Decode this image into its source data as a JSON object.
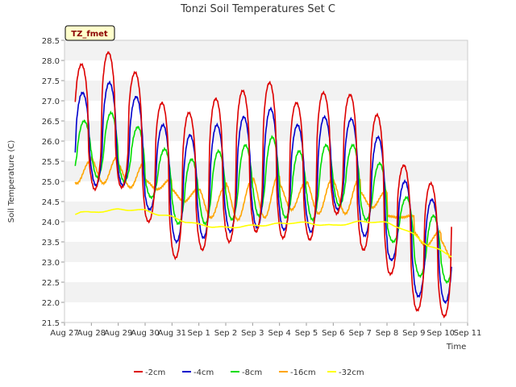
{
  "chart_data": {
    "type": "line",
    "title": "Tonzi Soil Temperatures Set C",
    "xlabel": "Time",
    "ylabel": "Soil Temperature (C)",
    "badge": "TZ_fmet",
    "ylim": [
      21.5,
      28.5
    ],
    "xlim": [
      0,
      15
    ],
    "x_tick_labels": [
      "Aug 27",
      "Aug 28",
      "Aug 29",
      "Aug 30",
      "Aug 31",
      "Sep 1",
      "Sep 2",
      "Sep 3",
      "Sep 4",
      "Sep 5",
      "Sep 6",
      "Sep 7",
      "Sep 8",
      "Sep 9",
      "Sep 10",
      "Sep 11"
    ],
    "y_ticks": [
      "21.5",
      "22.0",
      "22.5",
      "23.0",
      "23.5",
      "24.0",
      "24.5",
      "25.0",
      "25.5",
      "26.0",
      "26.5",
      "27.0",
      "27.5",
      "28.0",
      "28.5"
    ],
    "grid": "horizontal bands",
    "legend_position": "bottom",
    "x_start_day": 0.4,
    "x_end_day": 14.4,
    "series": [
      {
        "name": "-2cm",
        "color": "#dd0000",
        "phase": 0.63,
        "sharp": 2.2,
        "maxima": [
          27.9,
          28.2,
          27.7,
          26.95,
          26.7,
          27.05,
          27.25,
          27.45,
          26.95,
          27.2,
          27.15,
          26.65,
          25.4,
          24.95,
          24.85
        ],
        "minima": [
          24.8,
          24.85,
          24.0,
          23.1,
          23.3,
          23.5,
          23.75,
          23.6,
          23.55,
          24.2,
          23.3,
          22.7,
          21.8,
          21.65,
          23.0
        ]
      },
      {
        "name": "-4cm",
        "color": "#0000cc",
        "phase": 0.67,
        "sharp": 1.7,
        "maxima": [
          27.2,
          27.45,
          27.1,
          26.4,
          26.15,
          26.4,
          26.6,
          26.8,
          26.4,
          26.6,
          26.55,
          26.1,
          25.0,
          24.55,
          24.45
        ],
        "minima": [
          24.9,
          24.9,
          24.3,
          23.5,
          23.6,
          23.75,
          23.85,
          23.8,
          23.75,
          24.3,
          23.65,
          23.05,
          22.15,
          22.0,
          23.2
        ]
      },
      {
        "name": "-8cm",
        "color": "#00dd00",
        "phase": 0.73,
        "sharp": 1.3,
        "maxima": [
          26.5,
          26.7,
          26.35,
          25.8,
          25.55,
          25.75,
          25.9,
          26.1,
          25.75,
          25.9,
          25.9,
          25.45,
          24.6,
          24.15,
          24.0
        ],
        "minima": [
          25.1,
          25.0,
          24.6,
          23.95,
          23.95,
          24.05,
          24.15,
          24.1,
          24.05,
          24.4,
          24.05,
          23.5,
          22.65,
          22.5,
          23.35
        ]
      },
      {
        "name": "-16cm",
        "color": "#ffa500",
        "phase": 0.95,
        "sharp": 1.0,
        "maxima": [
          25.5,
          25.6,
          25.45,
          25.05,
          24.8,
          24.85,
          25.0,
          25.15,
          24.95,
          25.05,
          25.05,
          24.75,
          24.15,
          23.75,
          23.55
        ],
        "minima": [
          24.95,
          24.85,
          24.8,
          24.5,
          24.1,
          24.05,
          24.1,
          24.3,
          24.2,
          24.2,
          24.35,
          24.1,
          23.4,
          23.05,
          22.95
        ]
      }
    ],
    "deep_series": {
      "name": "-32cm",
      "color": "#ffff00",
      "x": [
        0.4,
        0.6,
        1.0,
        1.5,
        2.0,
        2.5,
        3.0,
        3.5,
        4.0,
        4.5,
        5.0,
        5.5,
        6.0,
        6.5,
        7.0,
        7.5,
        8.0,
        8.5,
        9.0,
        9.5,
        10.0,
        10.5,
        11.0,
        11.5,
        12.0,
        12.5,
        13.0,
        13.5,
        14.0,
        14.4
      ],
      "y": [
        24.2,
        24.25,
        24.22,
        24.27,
        24.3,
        24.3,
        24.28,
        24.18,
        24.12,
        24.0,
        23.93,
        23.88,
        23.85,
        23.88,
        23.9,
        23.92,
        23.95,
        23.98,
        23.97,
        23.93,
        23.9,
        23.95,
        24.0,
        24.0,
        23.97,
        23.85,
        23.68,
        23.42,
        23.28,
        23.15
      ]
    }
  }
}
